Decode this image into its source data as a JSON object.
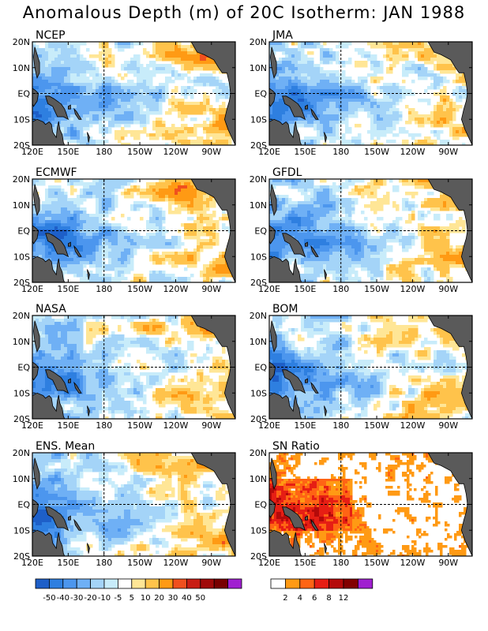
{
  "title": "Anomalous Depth (m) of 20C Isotherm: JAN 1988",
  "chart_data": {
    "type": "heatmap",
    "title": "Anomalous Depth (m) of 20C Isotherm: JAN 1988",
    "panels": [
      "NCEP",
      "JMA",
      "ECMWF",
      "GFDL",
      "NASA",
      "BOM",
      "ENS. Mean",
      "SN Ratio"
    ],
    "x_ticks": [
      "120E",
      "150E",
      "180",
      "150W",
      "120W",
      "90W"
    ],
    "y_ticks": [
      "20N",
      "10N",
      "EQ",
      "10S",
      "20S"
    ],
    "lon_range": [
      120,
      290
    ],
    "lat_range": [
      -20,
      20
    ],
    "anomaly_colorbar": {
      "labels": [
        "-50",
        "-40",
        "-30",
        "-20",
        "-10",
        "-5",
        "5",
        "10",
        "20",
        "30",
        "40",
        "50"
      ],
      "colors": [
        "#1e5fc8",
        "#2e7fe0",
        "#4c96ee",
        "#6fb0f5",
        "#a4d4f8",
        "#c8ecfa",
        "#ffffff",
        "#ffe696",
        "#ffc34b",
        "#ff9a14",
        "#f0501e",
        "#c81e14",
        "#a00a0a",
        "#780000",
        "#a020d0"
      ]
    },
    "snr_colorbar": {
      "labels": [
        "2",
        "4",
        "6",
        "8",
        "12"
      ],
      "colors": [
        "#ffffff",
        "#ff9a14",
        "#ff6414",
        "#e61e14",
        "#b40a0a",
        "#820000",
        "#a020d0"
      ]
    }
  }
}
